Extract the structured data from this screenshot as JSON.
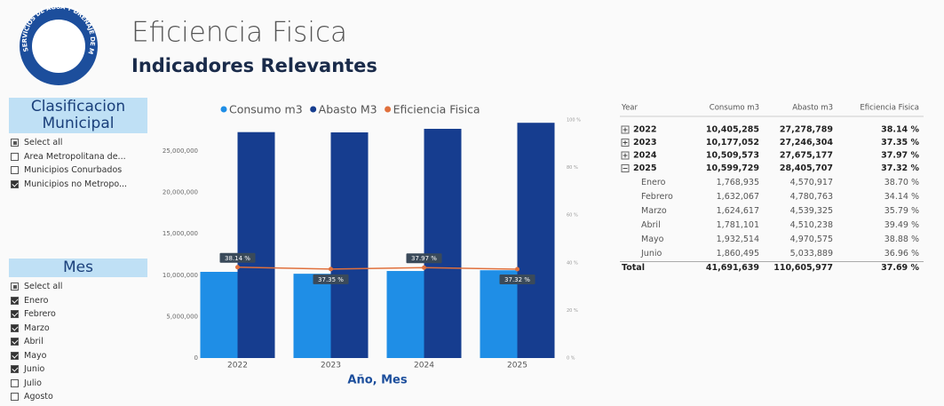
{
  "header": {
    "logo_text": "SERVICIOS DE AGUA Y DRENAJE DE MONTERREY, I.P.D.",
    "title": "Eficiencia Fisica",
    "subtitle": "Indicadores Relevantes"
  },
  "slicers": [
    {
      "title": "Clasificacion Municipal",
      "items": [
        {
          "label": "Select all",
          "state": "partial"
        },
        {
          "label": "Area Metropolitana de...",
          "state": "unchecked"
        },
        {
          "label": "Municipios Conurbados",
          "state": "unchecked"
        },
        {
          "label": "Municipios no Metropo...",
          "state": "checked"
        }
      ]
    },
    {
      "title": "Mes",
      "items": [
        {
          "label": "Select all",
          "state": "partial"
        },
        {
          "label": "Enero",
          "state": "checked"
        },
        {
          "label": "Febrero",
          "state": "checked"
        },
        {
          "label": "Marzo",
          "state": "checked"
        },
        {
          "label": "Abril",
          "state": "checked"
        },
        {
          "label": "Mayo",
          "state": "checked"
        },
        {
          "label": "Junio",
          "state": "checked"
        },
        {
          "label": "Julio",
          "state": "unchecked"
        },
        {
          "label": "Agosto",
          "state": "unchecked"
        }
      ]
    }
  ],
  "chart_data": {
    "type": "combo",
    "x_label": "Año, Mes",
    "categories": [
      "2022",
      "2023",
      "2024",
      "2025"
    ],
    "series": [
      {
        "name": "Consumo m3",
        "type": "bar",
        "color": "#1f8ee6",
        "values": [
          10405285,
          10177052,
          10509573,
          10599729
        ]
      },
      {
        "name": "Abasto M3",
        "type": "bar",
        "color": "#163d8f",
        "values": [
          27278789,
          27246304,
          27675177,
          28405707
        ]
      },
      {
        "name": "Eficiencia Fisica",
        "type": "line",
        "axis": "y2",
        "color": "#e0703c",
        "values": [
          38.14,
          37.35,
          37.97,
          37.32
        ],
        "value_labels": [
          "38.14 %",
          "37.35 %",
          "37.97 %",
          "37.32 %"
        ]
      }
    ],
    "ylim": [
      0,
      28750000
    ],
    "yticks": [
      0,
      {
        "value": 5000000,
        "label": "5,000,000"
      },
      {
        "value": 10000000,
        "label": "10,000,000"
      },
      {
        "value": 15000000,
        "label": "15,000,000"
      },
      {
        "value": 20000000,
        "label": "20,000,000"
      },
      {
        "value": 25000000,
        "label": "25,000,000"
      }
    ],
    "y2lim": [
      0,
      100
    ],
    "y2ticks": [
      {
        "value": 0,
        "label": "0 %"
      },
      {
        "value": 20,
        "label": "20 %"
      },
      {
        "value": 40,
        "label": "40 %"
      },
      {
        "value": 60,
        "label": "60 %"
      },
      {
        "value": 80,
        "label": "80 %"
      },
      {
        "value": 100,
        "label": "100 %"
      }
    ],
    "grid": false,
    "legend": "top"
  },
  "table": {
    "columns": [
      "Year",
      "Consumo m3",
      "Abasto m3",
      "Eficiencia Fisica"
    ],
    "rows": [
      {
        "kind": "year",
        "expanded": false,
        "cells": [
          "2022",
          "10,405,285",
          "27,278,789",
          "38.14 %"
        ]
      },
      {
        "kind": "year",
        "expanded": false,
        "cells": [
          "2023",
          "10,177,052",
          "27,246,304",
          "37.35 %"
        ]
      },
      {
        "kind": "year",
        "expanded": false,
        "cells": [
          "2024",
          "10,509,573",
          "27,675,177",
          "37.97 %"
        ]
      },
      {
        "kind": "year",
        "expanded": true,
        "cells": [
          "2025",
          "10,599,729",
          "28,405,707",
          "37.32 %"
        ]
      },
      {
        "kind": "month",
        "cells": [
          "Enero",
          "1,768,935",
          "4,570,917",
          "38.70 %"
        ]
      },
      {
        "kind": "month",
        "cells": [
          "Febrero",
          "1,632,067",
          "4,780,763",
          "34.14 %"
        ]
      },
      {
        "kind": "month",
        "cells": [
          "Marzo",
          "1,624,617",
          "4,539,325",
          "35.79 %"
        ]
      },
      {
        "kind": "month",
        "cells": [
          "Abril",
          "1,781,101",
          "4,510,238",
          "39.49 %"
        ]
      },
      {
        "kind": "month",
        "cells": [
          "Mayo",
          "1,932,514",
          "4,970,575",
          "38.88 %"
        ]
      },
      {
        "kind": "month",
        "cells": [
          "Junio",
          "1,860,495",
          "5,033,889",
          "36.96 %"
        ]
      },
      {
        "kind": "total",
        "cells": [
          "Total",
          "41,691,639",
          "110,605,977",
          "37.69 %"
        ]
      }
    ]
  }
}
